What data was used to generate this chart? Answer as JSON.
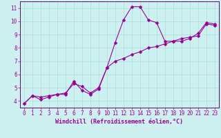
{
  "xlabel": "Windchill (Refroidissement éolien,°C)",
  "background_color": "#cdf1f1",
  "grid_color": "#aadddd",
  "line_color": "#990099",
  "spine_color": "#660066",
  "xlim": [
    -0.5,
    23.5
  ],
  "ylim": [
    3.5,
    11.5
  ],
  "xticks": [
    0,
    1,
    2,
    3,
    4,
    5,
    6,
    7,
    8,
    9,
    10,
    11,
    12,
    13,
    14,
    15,
    16,
    17,
    18,
    19,
    20,
    21,
    22,
    23
  ],
  "yticks": [
    4,
    5,
    6,
    7,
    8,
    9,
    10,
    11
  ],
  "series1_x": [
    0,
    1,
    2,
    3,
    4,
    5,
    6,
    7,
    8,
    9,
    10,
    11,
    12,
    13,
    14,
    15,
    16,
    17,
    18,
    19,
    20,
    21,
    22,
    23
  ],
  "series1_y": [
    3.8,
    4.4,
    4.1,
    4.3,
    4.5,
    4.5,
    5.5,
    4.8,
    4.5,
    4.9,
    6.5,
    8.4,
    10.1,
    11.1,
    11.1,
    10.1,
    9.9,
    8.5,
    8.5,
    8.5,
    8.7,
    9.1,
    9.9,
    9.8
  ],
  "series2_x": [
    0,
    1,
    2,
    3,
    4,
    5,
    6,
    7,
    8,
    9,
    10,
    11,
    12,
    13,
    14,
    15,
    16,
    17,
    18,
    19,
    20,
    21,
    22,
    23
  ],
  "series2_y": [
    3.8,
    4.4,
    4.3,
    4.4,
    4.5,
    4.6,
    5.3,
    5.1,
    4.6,
    5.0,
    6.5,
    7.0,
    7.2,
    7.5,
    7.7,
    8.0,
    8.1,
    8.3,
    8.5,
    8.7,
    8.8,
    8.9,
    9.8,
    9.7
  ],
  "markersize": 2.5,
  "linewidth": 0.8,
  "tick_fontsize": 5.5,
  "xlabel_fontsize": 6.0
}
